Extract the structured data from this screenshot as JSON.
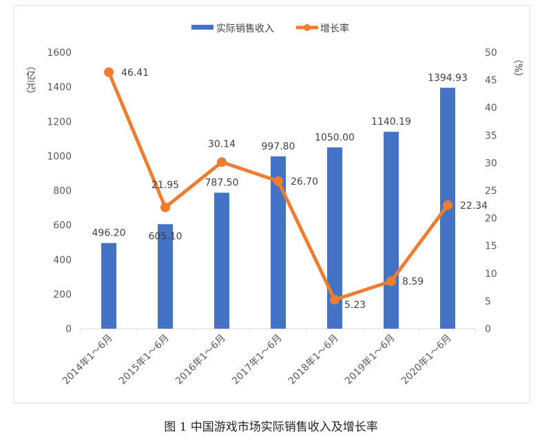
{
  "chart_data": {
    "type": "bar+line",
    "categories": [
      "2014年1～6月",
      "2015年1～6月",
      "2016年1～6月",
      "2017年1～6月",
      "2018年1～6月",
      "2019年1～6月",
      "2020年1～6月"
    ],
    "series": [
      {
        "name": "实际销售收入",
        "type": "bar",
        "axis": "left",
        "color": "#4472C4",
        "values": [
          496.2,
          605.1,
          787.5,
          997.8,
          1050.0,
          1140.19,
          1394.93
        ],
        "labels": [
          "496.20",
          "605.10",
          "787.50",
          "997.80",
          "1050.00",
          "1140.19",
          "1394.93"
        ]
      },
      {
        "name": "增长率",
        "type": "line",
        "axis": "right",
        "color": "#ED7D31",
        "values": [
          46.41,
          21.95,
          30.14,
          26.7,
          5.23,
          8.59,
          22.34
        ],
        "labels": [
          "46.41",
          "21.95",
          "30.14",
          "26.70",
          "5.23",
          "8.59",
          "22.34"
        ]
      }
    ],
    "y_left": {
      "label": "（亿元）",
      "range": [
        0,
        1600
      ],
      "ticks": [
        "0",
        "200",
        "400",
        "600",
        "800",
        "1000",
        "1200",
        "1400",
        "1600"
      ]
    },
    "y_right": {
      "label": "（%）",
      "range": [
        0,
        50
      ],
      "ticks": [
        "0",
        "5",
        "10",
        "15",
        "20",
        "25",
        "30",
        "35",
        "40",
        "45",
        "50"
      ]
    },
    "legend_position": "top",
    "grid": false
  },
  "caption": "图 1 中国游戏市场实际销售收入及增长率"
}
